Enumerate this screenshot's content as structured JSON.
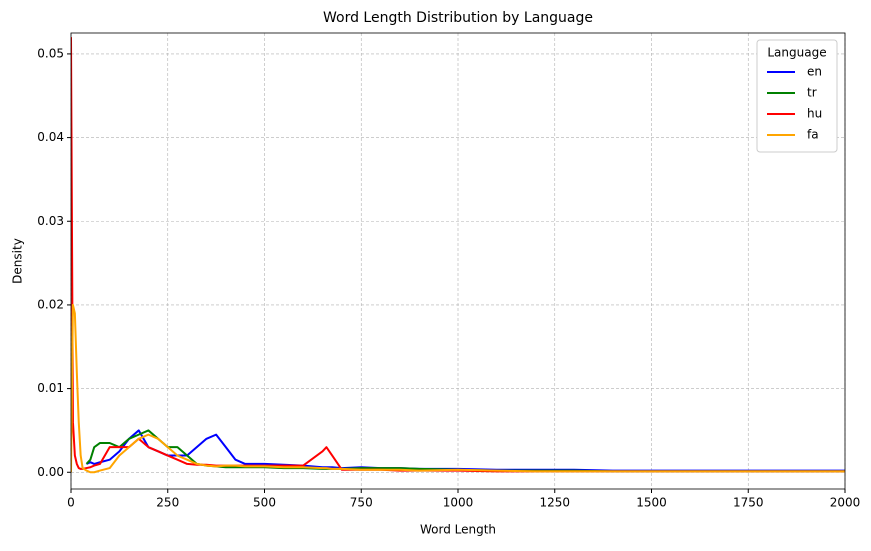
{
  "chart_data": {
    "type": "line",
    "title": "Word Length Distribution by Language",
    "xlabel": "Word Length",
    "ylabel": "Density",
    "x": [
      0,
      5,
      10,
      15,
      20,
      25,
      30,
      40,
      50,
      60,
      75,
      100,
      125,
      150,
      175,
      200,
      225,
      250,
      275,
      300,
      325,
      350,
      375,
      400,
      425,
      450,
      500,
      550,
      600,
      650,
      660,
      675,
      700,
      750,
      800,
      850,
      900,
      1000,
      1100,
      1200,
      1300,
      1400,
      1500,
      1600,
      1700,
      1800,
      1900,
      2000
    ],
    "series": [
      {
        "name": "en",
        "color": "#0000ff",
        "values": [
          null,
          null,
          null,
          null,
          null,
          null,
          null,
          0.001,
          0.0012,
          0.001,
          0.0012,
          0.0015,
          0.0025,
          0.004,
          0.005,
          0.003,
          0.0025,
          0.002,
          0.002,
          0.002,
          0.003,
          0.004,
          0.0045,
          0.003,
          0.0015,
          0.001,
          0.001,
          0.0009,
          0.0008,
          0.0006,
          0.0006,
          0.0006,
          0.0005,
          0.0006,
          0.0005,
          0.0005,
          0.0004,
          0.0004,
          0.0003,
          0.0003,
          0.0003,
          0.0002,
          0.0002,
          0.0002,
          0.0002,
          0.0002,
          0.0002,
          0.0002
        ]
      },
      {
        "name": "tr",
        "color": "#008000",
        "values": [
          null,
          null,
          null,
          null,
          null,
          null,
          null,
          0.001,
          0.0015,
          0.003,
          0.0035,
          0.0035,
          0.003,
          0.004,
          0.0045,
          0.005,
          0.004,
          0.003,
          0.003,
          0.002,
          0.001,
          0.0008,
          0.0007,
          0.0006,
          0.0006,
          0.0006,
          0.0006,
          0.0005,
          0.0005,
          0.0004,
          0.0004,
          0.0004,
          0.0004,
          0.0005,
          0.0005,
          0.0005,
          0.0004,
          0.0003,
          0.0002,
          0.0002,
          0.0002,
          0.0001,
          0.0001,
          0.0001,
          0.0001,
          0.0001,
          0.0001,
          0.0001
        ]
      },
      {
        "name": "hu",
        "color": "#ff0000",
        "values": [
          0.052,
          0.006,
          0.002,
          0.001,
          0.0005,
          0.0004,
          0.0004,
          0.0005,
          0.0006,
          0.0008,
          0.001,
          0.003,
          0.003,
          0.003,
          0.004,
          0.003,
          0.0025,
          0.002,
          0.0015,
          0.001,
          0.0009,
          0.0009,
          0.0008,
          0.0008,
          0.0008,
          0.0008,
          0.0008,
          0.0008,
          0.0008,
          0.0025,
          0.003,
          0.002,
          0.0003,
          0.0003,
          0.0003,
          0.0002,
          0.0002,
          0.0002,
          0.0001,
          0.0001,
          0.0001,
          0.0001,
          0.0001,
          0.0001,
          0.0001,
          0.0001,
          0.0001,
          0.0001
        ]
      },
      {
        "name": "fa",
        "color": "#ffa500",
        "values": [
          0,
          0.02,
          0.019,
          0.012,
          0.006,
          0.002,
          0.0005,
          0.0002,
          0,
          0,
          0.0002,
          0.0005,
          0.002,
          0.003,
          0.004,
          0.0045,
          0.004,
          0.003,
          0.002,
          0.0015,
          0.001,
          0.0008,
          0.0007,
          0.0008,
          0.0008,
          0.0007,
          0.0007,
          0.0006,
          0.0006,
          0.0005,
          0.0005,
          0.0004,
          0.0004,
          0.0003,
          0.0003,
          0.0003,
          0.0002,
          0.0003,
          0.0002,
          0.0001,
          0.0001,
          0.0001,
          0.0001,
          0.0001,
          0.0001,
          0.0001,
          0.0001,
          0.0001
        ]
      }
    ],
    "xlim": [
      0,
      2000
    ],
    "xticks": [
      0,
      250,
      500,
      750,
      1000,
      1250,
      1500,
      1750,
      2000
    ],
    "ylim": [
      -0.002,
      0.0525
    ],
    "yticks": [
      {
        "value": 0,
        "label": "0.00"
      },
      {
        "value": 0.01,
        "label": "0.01"
      },
      {
        "value": 0.02,
        "label": "0.02"
      },
      {
        "value": 0.03,
        "label": "0.03"
      },
      {
        "value": 0.04,
        "label": "0.04"
      },
      {
        "value": 0.05,
        "label": "0.05"
      }
    ],
    "grid": true,
    "legend_title": "Language",
    "legend": "upper right"
  }
}
